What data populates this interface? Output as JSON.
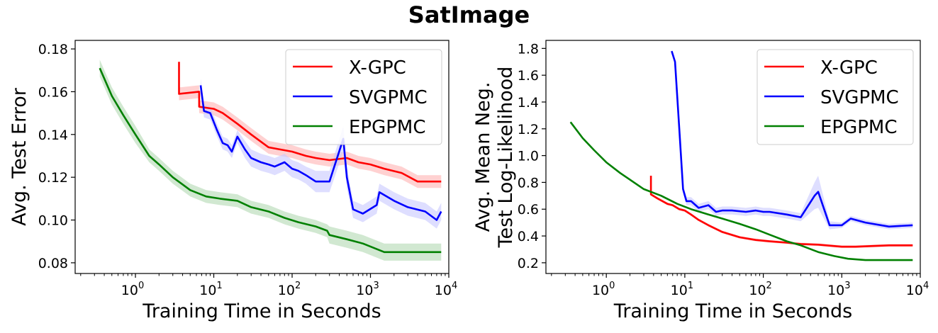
{
  "title": "SatImage",
  "chart_data": [
    {
      "type": "line",
      "xlabel": "Training Time in Seconds",
      "ylabel": "Avg. Test Error",
      "xscale": "log",
      "xlim": [
        0.17,
        10000
      ],
      "ylim": [
        0.075,
        0.184
      ],
      "xticks": [
        1,
        10,
        100,
        1000,
        10000
      ],
      "xtick_labels": [
        "10",
        "10",
        "10",
        "10",
        "10"
      ],
      "xtick_exponents": [
        "0",
        "1",
        "2",
        "3",
        "4"
      ],
      "yticks": [
        0.08,
        0.1,
        0.12,
        0.14,
        0.16,
        0.18
      ],
      "ytick_labels": [
        "0.08",
        "0.10",
        "0.12",
        "0.14",
        "0.16",
        "0.18"
      ],
      "legend": "upper right",
      "grid": false,
      "series": [
        {
          "name": "X-GPC",
          "color": "#ff0000",
          "band_color": "#ffb3b3",
          "x": [
            3.6,
            3.6,
            6.5,
            6.5,
            10,
            13,
            20,
            30,
            50,
            70,
            100,
            150,
            200,
            300,
            500,
            700,
            1000,
            1500,
            2500,
            4000,
            8000
          ],
          "y": [
            0.174,
            0.159,
            0.16,
            0.153,
            0.152,
            0.15,
            0.145,
            0.14,
            0.134,
            0.133,
            0.132,
            0.13,
            0.129,
            0.128,
            0.129,
            0.127,
            0.126,
            0.124,
            0.122,
            0.118,
            0.118
          ],
          "band": [
            0.003,
            0.003,
            0.003,
            0.003,
            0.003,
            0.003,
            0.003,
            0.003,
            0.003,
            0.003,
            0.003,
            0.003,
            0.003,
            0.003,
            0.003,
            0.003,
            0.003,
            0.003,
            0.003,
            0.003,
            0.003
          ]
        },
        {
          "name": "SVGPMC",
          "color": "#0000ff",
          "band_color": "#c8c8ff",
          "x": [
            6.8,
            7.5,
            9,
            11,
            13,
            15,
            17,
            20,
            25,
            30,
            40,
            50,
            60,
            80,
            100,
            120,
            150,
            200,
            300,
            450,
            500,
            600,
            800,
            1200,
            1300,
            2000,
            3000,
            5000,
            7000,
            8000
          ],
          "y": [
            0.163,
            0.151,
            0.15,
            0.142,
            0.136,
            0.135,
            0.132,
            0.139,
            0.133,
            0.129,
            0.127,
            0.126,
            0.125,
            0.127,
            0.124,
            0.123,
            0.121,
            0.118,
            0.118,
            0.138,
            0.12,
            0.105,
            0.103,
            0.107,
            0.113,
            0.109,
            0.106,
            0.104,
            0.1,
            0.104
          ],
          "band": [
            0.003,
            0.003,
            0.003,
            0.003,
            0.003,
            0.003,
            0.003,
            0.003,
            0.004,
            0.004,
            0.004,
            0.004,
            0.004,
            0.004,
            0.004,
            0.004,
            0.004,
            0.005,
            0.005,
            0.006,
            0.005,
            0.004,
            0.004,
            0.004,
            0.004,
            0.004,
            0.004,
            0.004,
            0.004,
            0.004
          ]
        },
        {
          "name": "EPGPMC",
          "color": "#008000",
          "band_color": "#b2d8b2",
          "x": [
            0.35,
            0.5,
            0.7,
            1.0,
            1.5,
            2.0,
            3.0,
            5.0,
            8.0,
            12,
            20,
            30,
            50,
            80,
            120,
            200,
            280,
            300,
            500,
            800,
            1500,
            3000,
            8000
          ],
          "y": [
            0.171,
            0.158,
            0.149,
            0.14,
            0.13,
            0.126,
            0.12,
            0.114,
            0.111,
            0.11,
            0.109,
            0.106,
            0.104,
            0.101,
            0.099,
            0.097,
            0.095,
            0.093,
            0.091,
            0.089,
            0.085,
            0.085,
            0.085
          ],
          "band": [
            0.004,
            0.004,
            0.004,
            0.004,
            0.003,
            0.003,
            0.003,
            0.003,
            0.003,
            0.003,
            0.003,
            0.003,
            0.003,
            0.003,
            0.003,
            0.003,
            0.003,
            0.004,
            0.004,
            0.004,
            0.004,
            0.004,
            0.004
          ]
        }
      ]
    },
    {
      "type": "line",
      "xlabel": "Training Time in Seconds",
      "ylabel": "Avg. Mean Neg.\nTest Log-Likelihood",
      "ylabel_lines": [
        "Avg. Mean Neg.",
        "Test Log-Likelihood"
      ],
      "xscale": "log",
      "xlim": [
        0.17,
        10000
      ],
      "ylim": [
        0.12,
        1.86
      ],
      "xticks": [
        1,
        10,
        100,
        1000,
        10000
      ],
      "xtick_labels": [
        "10",
        "10",
        "10",
        "10",
        "10"
      ],
      "xtick_exponents": [
        "0",
        "1",
        "2",
        "3",
        "4"
      ],
      "yticks": [
        0.2,
        0.4,
        0.6,
        0.8,
        1.0,
        1.2,
        1.4,
        1.6,
        1.8
      ],
      "ytick_labels": [
        "0.2",
        "0.4",
        "0.6",
        "0.8",
        "1.0",
        "1.2",
        "1.4",
        "1.6",
        "1.8"
      ],
      "legend": "upper right",
      "grid": false,
      "series": [
        {
          "name": "X-GPC",
          "color": "#ff0000",
          "band_color": "#ffb3b3",
          "x": [
            3.7,
            3.7,
            4.5,
            6.0,
            7.0,
            8.5,
            10,
            12,
            15,
            20,
            30,
            50,
            80,
            120,
            200,
            300,
            500,
            1000,
            1500,
            2500,
            4000,
            8000
          ],
          "y": [
            0.85,
            0.71,
            0.68,
            0.64,
            0.63,
            0.6,
            0.59,
            0.56,
            0.52,
            0.48,
            0.43,
            0.39,
            0.37,
            0.36,
            0.35,
            0.34,
            0.335,
            0.32,
            0.32,
            0.325,
            0.33,
            0.33
          ],
          "band": [
            0.01,
            0.01,
            0.01,
            0.01,
            0.01,
            0.01,
            0.01,
            0.01,
            0.01,
            0.01,
            0.01,
            0.01,
            0.01,
            0.01,
            0.01,
            0.01,
            0.01,
            0.01,
            0.01,
            0.01,
            0.01,
            0.01
          ]
        },
        {
          "name": "SVGPMC",
          "color": "#0000ff",
          "band_color": "#c8c8ff",
          "x": [
            6.8,
            7.5,
            8.5,
            9.5,
            10.5,
            12,
            15,
            20,
            25,
            30,
            40,
            60,
            80,
            100,
            120,
            200,
            300,
            450,
            500,
            700,
            1000,
            1300,
            2000,
            4000,
            8000
          ],
          "y": [
            1.78,
            1.7,
            1.2,
            0.75,
            0.66,
            0.66,
            0.61,
            0.63,
            0.58,
            0.59,
            0.59,
            0.58,
            0.59,
            0.58,
            0.58,
            0.56,
            0.54,
            0.7,
            0.73,
            0.48,
            0.48,
            0.53,
            0.5,
            0.47,
            0.48
          ],
          "band": [
            0.01,
            0.02,
            0.03,
            0.03,
            0.03,
            0.03,
            0.03,
            0.03,
            0.03,
            0.03,
            0.03,
            0.03,
            0.03,
            0.03,
            0.03,
            0.03,
            0.03,
            0.1,
            0.12,
            0.03,
            0.02,
            0.02,
            0.02,
            0.02,
            0.02
          ]
        },
        {
          "name": "EPGPMC",
          "color": "#008000",
          "band_color": "#b2d8b2",
          "x": [
            0.35,
            0.5,
            0.7,
            1.0,
            1.5,
            2.0,
            3.0,
            5.0,
            8.0,
            12,
            20,
            30,
            50,
            80,
            120,
            200,
            300,
            500,
            800,
            1200,
            2000,
            4000,
            8000
          ],
          "y": [
            1.25,
            1.13,
            1.04,
            0.95,
            0.87,
            0.82,
            0.75,
            0.7,
            0.64,
            0.6,
            0.56,
            0.53,
            0.49,
            0.45,
            0.41,
            0.36,
            0.33,
            0.28,
            0.25,
            0.23,
            0.22,
            0.22,
            0.22
          ],
          "band": [
            0.005,
            0.005,
            0.005,
            0.005,
            0.005,
            0.005,
            0.005,
            0.005,
            0.005,
            0.005,
            0.005,
            0.005,
            0.005,
            0.005,
            0.005,
            0.005,
            0.005,
            0.005,
            0.005,
            0.005,
            0.005,
            0.005,
            0.005
          ]
        }
      ]
    }
  ]
}
